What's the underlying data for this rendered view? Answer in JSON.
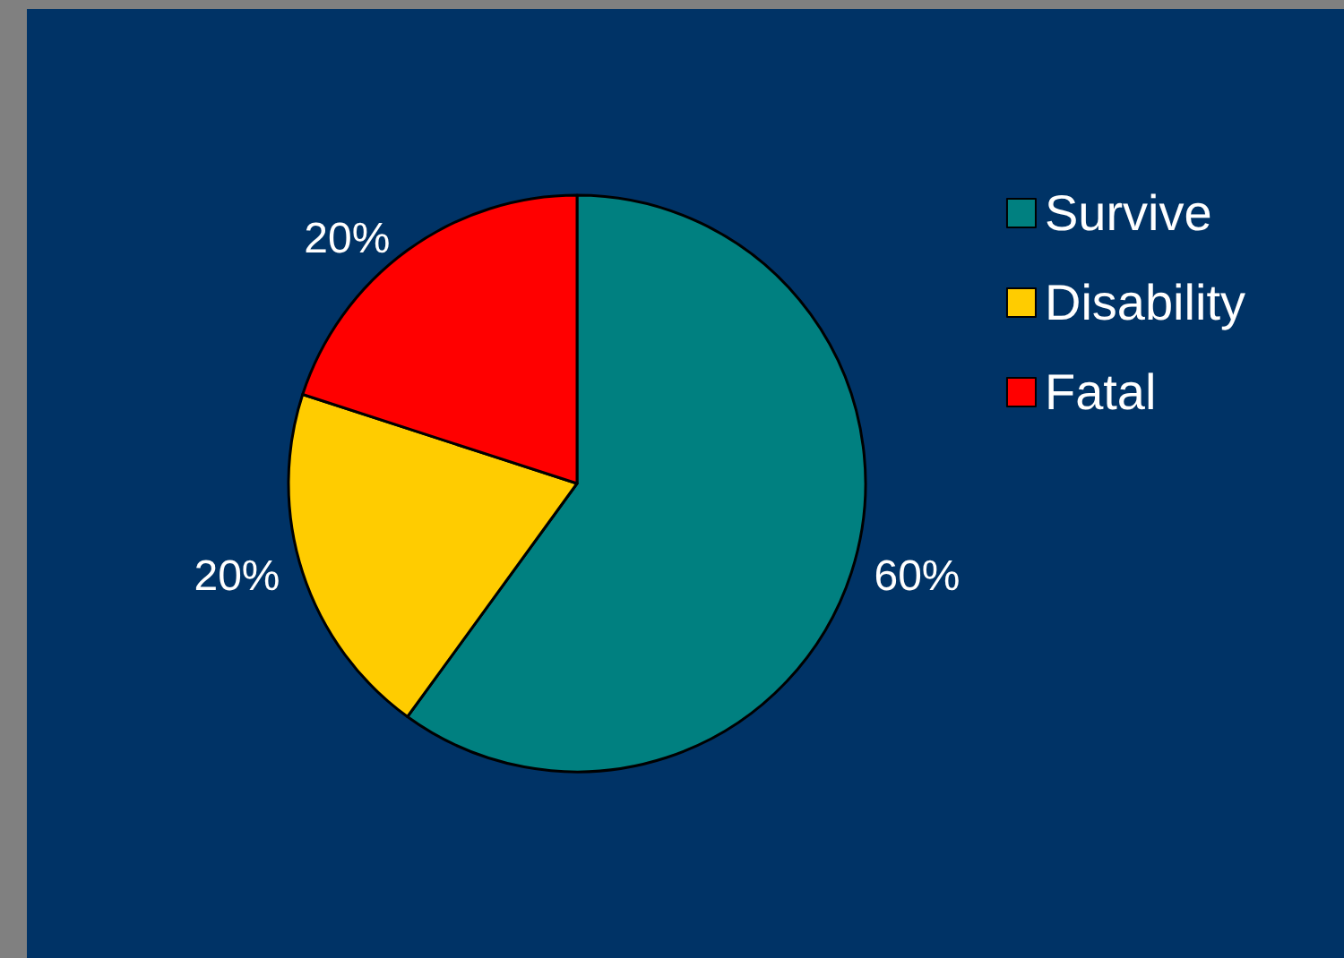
{
  "chart_data": {
    "type": "pie",
    "categories": [
      "Survive",
      "Disability",
      "Fatal"
    ],
    "values": [
      60,
      20,
      20
    ],
    "colors": [
      "#008080",
      "#ffcc00",
      "#ff0000"
    ],
    "value_labels": [
      "60%",
      "20%",
      "20%"
    ],
    "legend": "top right"
  }
}
